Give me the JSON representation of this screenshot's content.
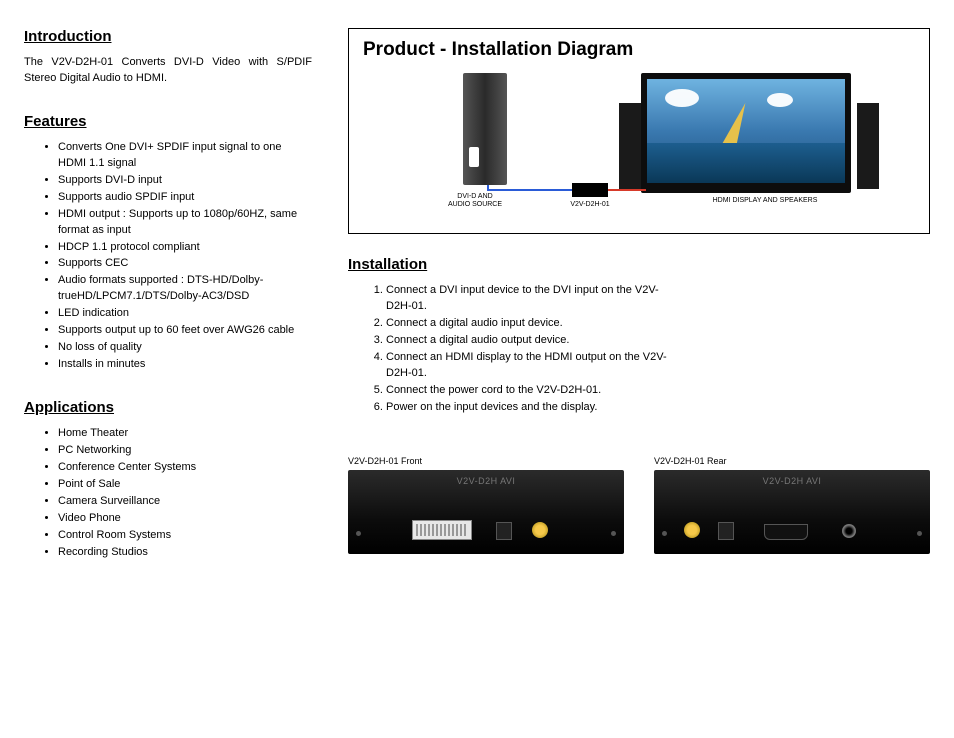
{
  "left": {
    "intro_heading": "Introduction",
    "intro_text": "The V2V-D2H-01 Converts DVI-D Video with S/PDIF Stereo Digital Audio to HDMI.",
    "features_heading": "Features",
    "features": [
      "Converts One DVI+ SPDIF input signal to one HDMI 1.1 signal",
      "Supports DVI-D input",
      "Supports audio SPDIF input",
      "HDMI output : Supports up to 1080p/60HZ, same format as input",
      "HDCP 1.1 protocol compliant",
      "Supports CEC",
      "Audio formats supported : DTS-HD/Dolby-trueHD/LPCM7.1/DTS/Dolby-AC3/DSD",
      "LED indication",
      "Supports output up to 60 feet over AWG26 cable",
      "No loss of quality",
      "Installs in minutes"
    ],
    "applications_heading": "Applications",
    "applications": [
      "Home Theater",
      "PC Networking",
      "Conference Center Systems",
      "Point of Sale",
      "Camera Surveillance",
      "Video Phone",
      "Control Room Systems",
      "Recording Studios"
    ]
  },
  "right": {
    "diagram_title": "Product  -  Installation Diagram",
    "diagram_labels": {
      "source": "DVI-D AND\nAUDIO SOURCE",
      "converter": "V2V-D2H-01",
      "display": "HDMI DISPLAY AND SPEAKERS"
    },
    "diagram_colors": {
      "cable_dvi": "#2a5bd7",
      "cable_hdmi": "#d73a2a",
      "monitor_body": "#0d0d0d",
      "sky_top": "#6fb3e0",
      "sky_bottom": "#1b4d7a",
      "sail": "#e6c14b"
    },
    "installation_heading": "Installation",
    "installation_steps": [
      "Connect a DVI input device to the DVI input on the V2V-D2H-01.",
      "Connect a digital audio input device.",
      "Connect a digital audio output device.",
      "Connect an HDMI display to the HDMI output on the V2V-D2H-01.",
      "Connect the power cord to the V2V-D2H-01.",
      "Power on the input devices and the display."
    ],
    "front_caption": "V2V-D2H-01 Front",
    "rear_caption": "V2V-D2H-01 Rear"
  }
}
